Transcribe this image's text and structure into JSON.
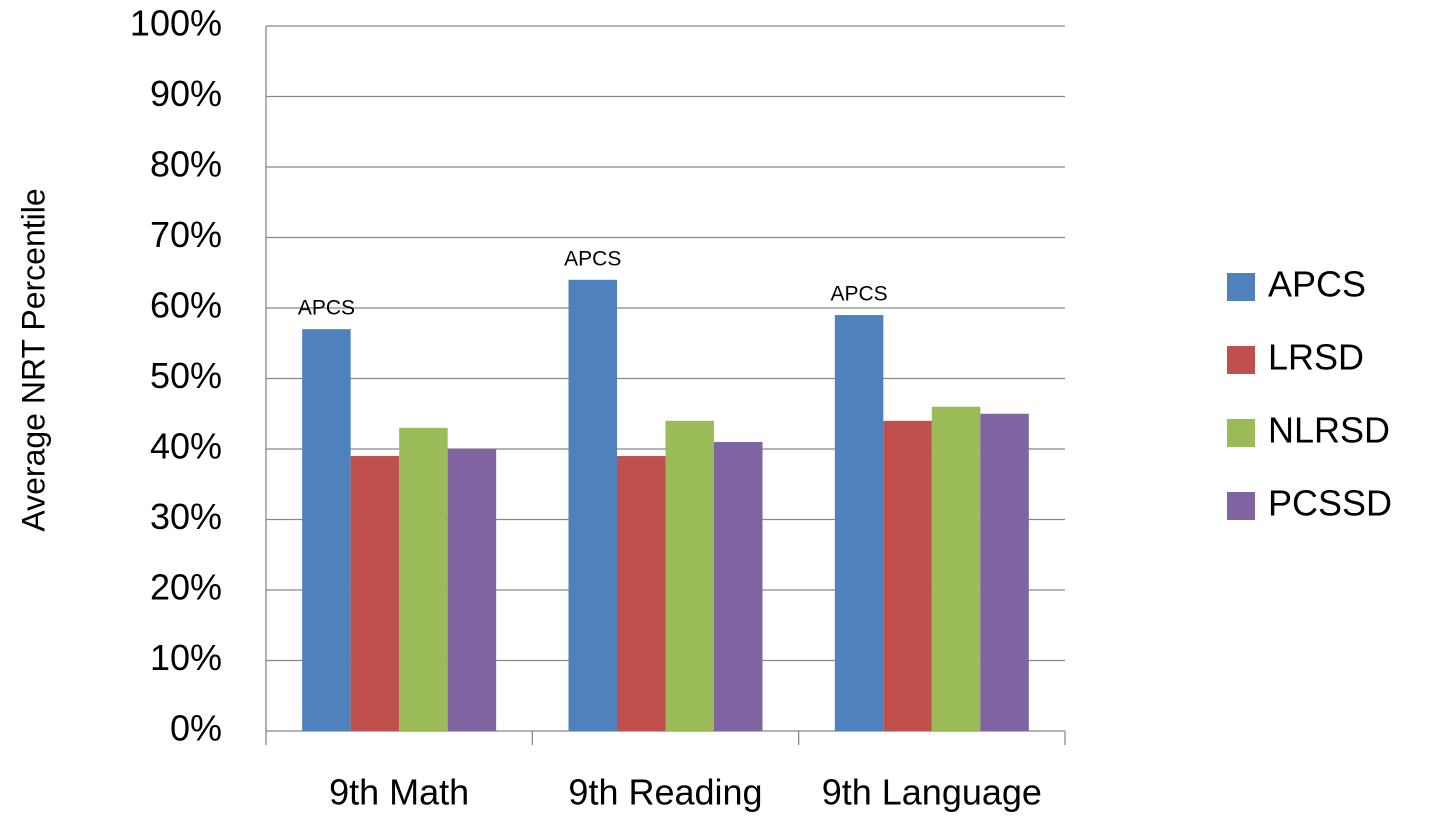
{
  "chart_data": {
    "type": "bar",
    "y_axis_label": "Average NRT Percentile",
    "categories": [
      "9th Math",
      "9th Reading",
      "9th Language"
    ],
    "series": [
      {
        "name": "APCS",
        "color": "#4f81bd",
        "values": [
          57,
          64,
          59
        ]
      },
      {
        "name": "LRSD",
        "color": "#c0504d",
        "values": [
          39,
          39,
          44
        ]
      },
      {
        "name": "NLRSD",
        "color": "#9bbb59",
        "values": [
          43,
          44,
          46
        ]
      },
      {
        "name": "PCSSD",
        "color": "#8064a2",
        "values": [
          40,
          41,
          45
        ]
      }
    ],
    "annotations": [
      "APCS",
      "APCS",
      "APCS"
    ],
    "ylim": [
      0,
      100
    ],
    "yticks": [
      {
        "value": 0,
        "label": "0%"
      },
      {
        "value": 10,
        "label": "10%"
      },
      {
        "value": 20,
        "label": "20%"
      },
      {
        "value": 30,
        "label": "30%"
      },
      {
        "value": 40,
        "label": "40%"
      },
      {
        "value": 50,
        "label": "50%"
      },
      {
        "value": 60,
        "label": "60%"
      },
      {
        "value": 70,
        "label": "70%"
      },
      {
        "value": 80,
        "label": "80%"
      },
      {
        "value": 90,
        "label": "90%"
      },
      {
        "value": 100,
        "label": "100%"
      }
    ],
    "grid": true,
    "legend": "right"
  }
}
